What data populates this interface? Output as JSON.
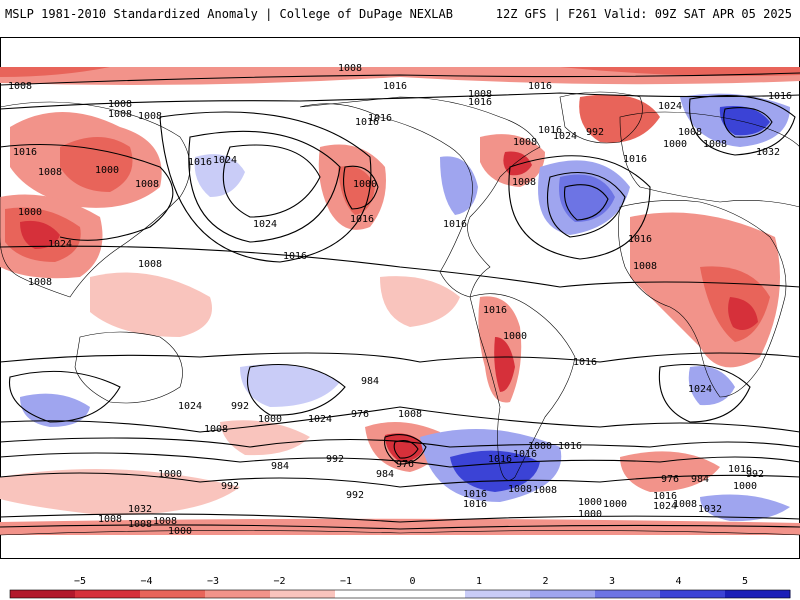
{
  "header": {
    "title_left": "MSLP 1981-2010 Standardized Anomaly | College of DuPage NEXLAB",
    "title_right": "12Z GFS | F261 Valid: 09Z SAT APR 05 2025"
  },
  "colors": {
    "neg5": "#b2182b",
    "neg4": "#d6303a",
    "neg3": "#e8645a",
    "neg2": "#f2938a",
    "neg1": "#f9c4bd",
    "pos1": "#c9ccf7",
    "pos2": "#9fa5ef",
    "pos3": "#6d74e4",
    "pos4": "#3b43d6",
    "pos5": "#1a1fb8",
    "contour": "#000000",
    "coast": "#000000"
  },
  "colorbar": {
    "ticks": [
      "−5",
      "−4",
      "−3",
      "−2",
      "−1",
      "0",
      "1",
      "2",
      "3",
      "4",
      "5"
    ]
  },
  "contour_labels": [
    "1008",
    "1008",
    "1008",
    "1016",
    "1008",
    "1000",
    "1008",
    "1000",
    "1024",
    "1016",
    "1016",
    "1008",
    "1008",
    "1008",
    "1016",
    "1016",
    "1016",
    "1016",
    "1008",
    "1024",
    "992",
    "1024",
    "1000",
    "1016",
    "1008",
    "1032",
    "1008",
    "1016",
    "1016",
    "1000",
    "1016",
    "1008",
    "1016",
    "1008",
    "1008",
    "1024",
    "1016",
    "1016",
    "1024",
    "1008",
    "1016",
    "1000",
    "1016",
    "1024",
    "992",
    "984",
    "976",
    "1000",
    "1008",
    "1024",
    "984",
    "992",
    "992",
    "1032",
    "1008",
    "1000",
    "976",
    "984",
    "1008",
    "1016",
    "1000",
    "1016",
    "1016",
    "1000",
    "1008",
    "1016",
    "1024",
    "1008",
    "1000",
    "1000",
    "976",
    "984",
    "992",
    "1000",
    "1016",
    "1032",
    "1008",
    "1008",
    "1000",
    "992",
    "1016",
    "1008",
    "1016",
    "1024"
  ]
}
